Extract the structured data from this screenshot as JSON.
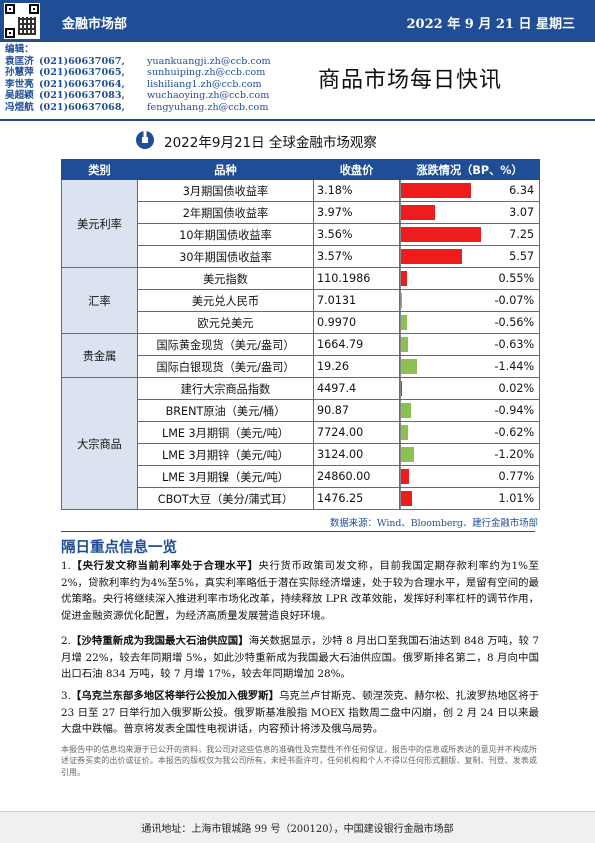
{
  "header": {
    "dept": "金融市场部",
    "date": "2022 年 9 月 21 日  星期三",
    "title": "商品市场每日快讯"
  },
  "editors": {
    "label": "编辑：",
    "list": [
      {
        "name": "袁匡济",
        "phone": "(021)60637067,",
        "email": "yuankuangji.zh@ccb.com"
      },
      {
        "name": "孙慧萍",
        "phone": "(021)60637065,",
        "email": "sunhuiping.zh@ccb.com"
      },
      {
        "name": "李世亮",
        "phone": "(021)60637064,",
        "email": "lishiliang1.zh@ccb.com"
      },
      {
        "name": "吴超颖",
        "phone": "(021)60637083,",
        "email": "wuchaoying.zh@ccb.com"
      },
      {
        "name": "冯煜航",
        "phone": "(021)60637068,",
        "email": "fengyuhang.zh@ccb.com"
      }
    ]
  },
  "table": {
    "title": "2022年9月21日  全球金融市场观察",
    "headers": [
      "类别",
      "品种",
      "收盘价",
      "涨跌情况（BP、%）"
    ],
    "groups": [
      {
        "category": "美元利率",
        "rows": [
          {
            "name": "3月期国债收益率",
            "close": "3.18%",
            "change": "6.34",
            "value": 6.34
          },
          {
            "name": "2年期国债收益率",
            "close": "3.97%",
            "change": "3.07",
            "value": 3.07
          },
          {
            "name": "10年期国债收益率",
            "close": "3.56%",
            "change": "7.25",
            "value": 7.25
          },
          {
            "name": "30年期国债收益率",
            "close": "3.57%",
            "change": "5.57",
            "value": 5.57
          }
        ]
      },
      {
        "category": "汇率",
        "rows": [
          {
            "name": "美元指数",
            "close": "110.1986",
            "change": "0.55%",
            "value": 0.55
          },
          {
            "name": "美元兑人民币",
            "close": "7.0131",
            "change": "-0.07%",
            "value": -0.07
          },
          {
            "name": "欧元兑美元",
            "close": "0.9970",
            "change": "-0.56%",
            "value": -0.56
          }
        ]
      },
      {
        "category": "贵金属",
        "rows": [
          {
            "name": "国际黄金现货（美元/盎司）",
            "close": "1664.79",
            "change": "-0.63%",
            "value": -0.63
          },
          {
            "name": "国际白银现货（美元/盎司）",
            "close": "19.26",
            "change": "-1.44%",
            "value": -1.44
          }
        ]
      },
      {
        "category": "大宗商品",
        "rows": [
          {
            "name": "建行大宗商品指数",
            "close": "4497.4",
            "change": "0.02%",
            "value": 0.02
          },
          {
            "name": "BRENT原油（美元/桶）",
            "close": "90.87",
            "change": "-0.94%",
            "value": -0.94
          },
          {
            "name": "LME 3月期铜（美元/吨）",
            "close": "7724.00",
            "change": "-0.62%",
            "value": -0.62
          },
          {
            "name": "LME 3月期锌（美元/吨）",
            "close": "3124.00",
            "change": "-1.20%",
            "value": -1.2
          },
          {
            "name": "LME 3月期镍（美元/吨）",
            "close": "24860.00",
            "change": "0.77%",
            "value": 0.77
          },
          {
            "name": "CBOT大豆（美分/蒲式耳）",
            "close": "1476.25",
            "change": "1.01%",
            "value": 1.01
          }
        ]
      }
    ],
    "source": "数据来源：Wind、Bloomberg、建行金融市场部"
  },
  "news": {
    "section_title": "隔日重点信息一览",
    "items": [
      {
        "num": "1.",
        "title": "【央行发文称当前利率处于合理水平】",
        "body": "央行货币政策司发文称，目前我国定期存款利率约为1%至2%，贷款利率约为4%至5%，真实利率略低于潜在实际经济增速，处于较为合理水平，是留有空间的最优策略。央行将继续深入推进利率市场化改革，持续释放 LPR 改革效能，发挥好利率杠杆的调节作用，促进金融资源优化配置，为经济高质量发展营造良好环境。"
      },
      {
        "num": "2.",
        "title": "【沙特重新成为我国最大石油供应国】",
        "body": "海关数据显示，沙特 8 月出口至我国石油达到 848 万吨，较 7 月增 22%，较去年同期增 5%，如此沙特重新成为我国最大石油供应国。俄罗斯排名第二，8 月向中国出口石油 834 万吨，较 7 月增 17%，较去年同期增加 28%。"
      },
      {
        "num": "3.",
        "title": "【乌克兰东部多地区将举行公投加入俄罗斯】",
        "body": "乌克兰卢甘斯克、顿涅茨克、赫尔松、扎波罗热地区将于 23 日至 27 日举行加入俄罗斯公投。俄罗斯基准股指 MOEX 指数周二盘中闪崩，创 2 月 24 日以来最大盘中跌幅。普京将发表全国性电视讲话，内容预计将涉及俄乌局势。"
      }
    ]
  },
  "disclaimer": "本报告中的信息均来源于已公开的资料，我公司对这些信息的准确性及完整性不作任何保证，报告中的信息或所表达的意见并不构成所述证券买卖的出价或征价。本报告的版权仅为我公司所有，未经书面许可，任何机构和个人不得以任何形式翻版、复制、刊登、发表或引用。",
  "footer": "通讯地址：上海市银城路 99 号（200120），中国建设银行金融市场部",
  "colors": {
    "brand": "#1f4e96",
    "up": "#ee1c1c",
    "down": "#8cc152"
  }
}
